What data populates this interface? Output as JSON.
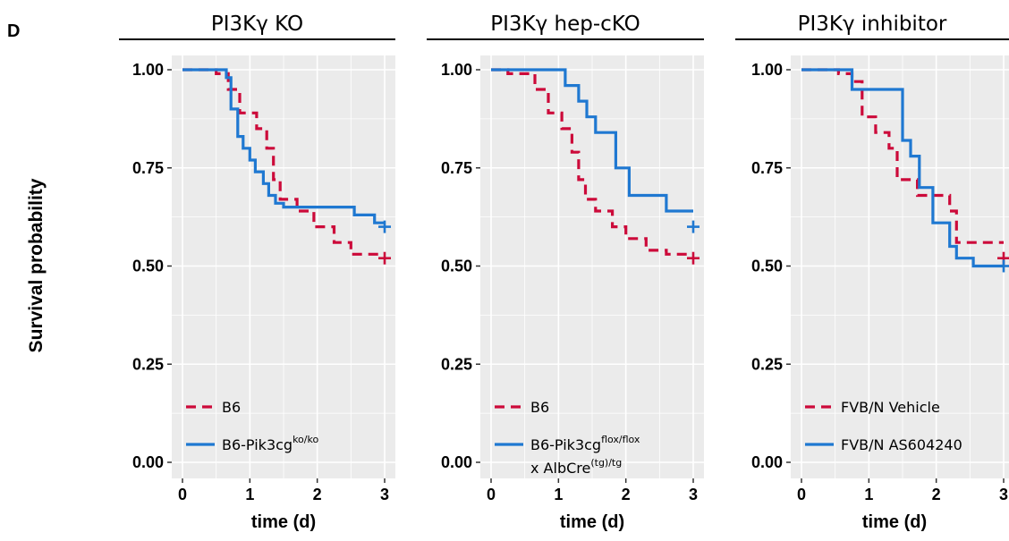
{
  "panel_label": "D",
  "ylabel": "Survival probability",
  "colors": {
    "b6": "#cc0a3a",
    "treated": "#1f78d1",
    "panel_bg": "#ebebeb",
    "grid": "#ffffff"
  },
  "chart_data": [
    {
      "type": "line",
      "title": "PI3Kγ KO",
      "xlabel": "time (d)",
      "ylabel": "Survival probability",
      "xlim": [
        0,
        3
      ],
      "ylim": [
        0,
        1
      ],
      "x_ticks": [
        "0",
        "1",
        "2",
        "3"
      ],
      "y_ticks": [
        "0.00",
        "0.25",
        "0.50",
        "0.75",
        "1.00"
      ],
      "legend": [
        {
          "text": "B6",
          "sup": "",
          "line2": ""
        },
        {
          "text": "B6-Pik3cg",
          "sup": "ko/ko",
          "line2": ""
        }
      ],
      "series": [
        {
          "name": "B6",
          "color": "#cc0a3a",
          "dash": true,
          "x": [
            0,
            0.5,
            0.5,
            0.68,
            0.68,
            0.85,
            0.85,
            1.1,
            1.1,
            1.25,
            1.25,
            1.35,
            1.35,
            1.45,
            1.45,
            1.7,
            1.7,
            1.95,
            1.95,
            2.25,
            2.25,
            2.5,
            2.5,
            3.0
          ],
          "y": [
            1.0,
            1.0,
            0.99,
            0.99,
            0.95,
            0.95,
            0.89,
            0.89,
            0.85,
            0.85,
            0.8,
            0.8,
            0.72,
            0.72,
            0.67,
            0.67,
            0.64,
            0.64,
            0.6,
            0.6,
            0.56,
            0.56,
            0.53,
            0.53
          ],
          "censor": [
            [
              3.0,
              0.52
            ]
          ]
        },
        {
          "name": "B6-Pik3cg ko/ko",
          "color": "#1f78d1",
          "dash": false,
          "x": [
            0,
            0.65,
            0.65,
            0.72,
            0.72,
            0.82,
            0.82,
            0.9,
            0.9,
            1.0,
            1.0,
            1.08,
            1.08,
            1.2,
            1.2,
            1.28,
            1.28,
            1.38,
            1.38,
            1.5,
            1.5,
            2.55,
            2.55,
            2.85,
            2.85,
            3.0
          ],
          "y": [
            1.0,
            1.0,
            0.98,
            0.98,
            0.9,
            0.9,
            0.83,
            0.83,
            0.8,
            0.8,
            0.77,
            0.77,
            0.74,
            0.74,
            0.71,
            0.71,
            0.68,
            0.68,
            0.66,
            0.66,
            0.65,
            0.65,
            0.63,
            0.63,
            0.61,
            0.61
          ],
          "censor": [
            [
              3.0,
              0.6
            ]
          ]
        }
      ]
    },
    {
      "type": "line",
      "title": "PI3Kγ hep-cKO",
      "xlabel": "time (d)",
      "ylabel": "Survival probability",
      "xlim": [
        0,
        3
      ],
      "ylim": [
        0,
        1
      ],
      "x_ticks": [
        "0",
        "1",
        "2",
        "3"
      ],
      "y_ticks": [
        "0.00",
        "0.25",
        "0.50",
        "0.75",
        "1.00"
      ],
      "legend": [
        {
          "text": "B6",
          "sup": "",
          "line2": ""
        },
        {
          "text": "B6-Pik3cg",
          "sup": "flox/flox",
          "line2": "x AlbCre",
          "line2_sup": "(tg)/tg"
        }
      ],
      "series": [
        {
          "name": "B6",
          "color": "#cc0a3a",
          "dash": true,
          "x": [
            0,
            0.25,
            0.25,
            0.65,
            0.65,
            0.85,
            0.85,
            1.05,
            1.05,
            1.2,
            1.2,
            1.3,
            1.3,
            1.4,
            1.4,
            1.55,
            1.55,
            1.8,
            1.8,
            2.0,
            2.0,
            2.3,
            2.3,
            2.6,
            2.6,
            3.0
          ],
          "y": [
            1.0,
            1.0,
            0.99,
            0.99,
            0.95,
            0.95,
            0.89,
            0.89,
            0.85,
            0.85,
            0.79,
            0.79,
            0.72,
            0.72,
            0.67,
            0.67,
            0.64,
            0.64,
            0.6,
            0.6,
            0.57,
            0.57,
            0.54,
            0.54,
            0.53,
            0.53
          ],
          "censor": [
            [
              3.0,
              0.52
            ]
          ]
        },
        {
          "name": "B6-Pik3cg flox/flox x AlbCre (tg)/tg",
          "color": "#1f78d1",
          "dash": false,
          "x": [
            0,
            1.1,
            1.1,
            1.3,
            1.3,
            1.42,
            1.42,
            1.55,
            1.55,
            1.85,
            1.85,
            2.05,
            2.05,
            2.6,
            2.6,
            3.0
          ],
          "y": [
            1.0,
            1.0,
            0.96,
            0.96,
            0.92,
            0.92,
            0.88,
            0.88,
            0.84,
            0.84,
            0.75,
            0.75,
            0.68,
            0.68,
            0.64,
            0.64
          ],
          "censor": [
            [
              3.0,
              0.6
            ]
          ]
        }
      ]
    },
    {
      "type": "line",
      "title": "PI3Kγ inhibitor",
      "xlabel": "time (d)",
      "ylabel": "Survival probability",
      "xlim": [
        0,
        3
      ],
      "ylim": [
        0,
        1
      ],
      "x_ticks": [
        "0",
        "1",
        "2",
        "3"
      ],
      "y_ticks": [
        "0.00",
        "0.25",
        "0.50",
        "0.75",
        "1.00"
      ],
      "legend": [
        {
          "text": "FVB/N Vehicle",
          "sup": "",
          "line2": ""
        },
        {
          "text": "FVB/N AS604240",
          "sup": "",
          "line2": ""
        }
      ],
      "series": [
        {
          "name": "FVB/N Vehicle",
          "color": "#cc0a3a",
          "dash": true,
          "x": [
            0,
            0.55,
            0.55,
            0.75,
            0.75,
            0.9,
            0.9,
            1.1,
            1.1,
            1.3,
            1.3,
            1.42,
            1.42,
            1.72,
            1.72,
            1.9,
            1.9,
            2.2,
            2.2,
            2.3,
            2.3,
            2.5,
            2.5,
            3.0
          ],
          "y": [
            1.0,
            1.0,
            0.99,
            0.99,
            0.97,
            0.97,
            0.88,
            0.88,
            0.84,
            0.84,
            0.8,
            0.8,
            0.72,
            0.72,
            0.68,
            0.68,
            0.68,
            0.68,
            0.64,
            0.64,
            0.56,
            0.56,
            0.56,
            0.56
          ],
          "censor": [
            [
              3.0,
              0.52
            ]
          ]
        },
        {
          "name": "FVB/N AS604240",
          "color": "#1f78d1",
          "dash": false,
          "x": [
            0,
            0.75,
            0.75,
            1.5,
            1.5,
            1.62,
            1.62,
            1.75,
            1.75,
            1.95,
            1.95,
            2.2,
            2.2,
            2.3,
            2.3,
            2.55,
            2.55,
            3.0
          ],
          "y": [
            1.0,
            1.0,
            0.95,
            0.95,
            0.82,
            0.82,
            0.78,
            0.78,
            0.7,
            0.7,
            0.61,
            0.61,
            0.55,
            0.55,
            0.52,
            0.52,
            0.5,
            0.5
          ],
          "censor": [
            [
              3.0,
              0.5
            ]
          ]
        }
      ]
    }
  ]
}
